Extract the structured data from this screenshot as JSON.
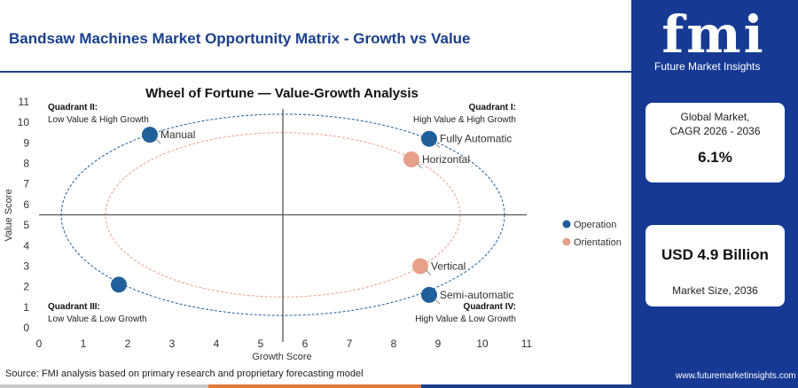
{
  "header": {
    "title": "Bandsaw Machines Market Opportunity Matrix - Growth vs Value"
  },
  "brand": {
    "logo_text": "fmi",
    "tagline": "Future Market Insights",
    "url": "www.futuremarketinsights.com"
  },
  "stats": {
    "cagr_label_line1": "Global Market,",
    "cagr_label_line2": "CAGR 2026 - 2036",
    "cagr_value": "6.1%",
    "size_value": "USD 4.9 Billion",
    "size_label": "Market Size, 2036"
  },
  "footer": {
    "source": "Source: FMI analysis based on primary research and proprietary forecasting model"
  },
  "colors": {
    "brand_navy": "#163a94",
    "operation": "#1f5f9a",
    "orientation": "#e8a08a",
    "footer_gray": "#c8c8c8",
    "footer_orange": "#e07a3a"
  },
  "chart_data": {
    "type": "scatter",
    "title": "Wheel of Fortune — Value-Growth Analysis",
    "xlabel": "Growth Score",
    "ylabel": "Value Score",
    "xlim": [
      0,
      11
    ],
    "ylim": [
      0,
      11
    ],
    "xticks": [
      0,
      1,
      2,
      3,
      4,
      5,
      6,
      7,
      8,
      9,
      10,
      11
    ],
    "yticks": [
      0,
      1,
      2,
      3,
      4,
      5,
      6,
      7,
      8,
      9,
      10,
      11
    ],
    "divider_x": 5.5,
    "divider_y": 5.5,
    "grid": false,
    "legend_position": "right",
    "quadrants": [
      {
        "title": "Quadrant II:",
        "subtitle": "Low Value & High Growth",
        "corner": "top-left"
      },
      {
        "title": "Quadrant I:",
        "subtitle": "High Value & High Growth",
        "corner": "top-right"
      },
      {
        "title": "Quadrant III:",
        "subtitle": "Low Value & Low Growth",
        "corner": "bottom-left"
      },
      {
        "title": "Quadrant IV:",
        "subtitle": "High Value & Low Growth",
        "corner": "bottom-right"
      }
    ],
    "rings": [
      {
        "series": "Operation",
        "center": [
          5.5,
          5.5
        ],
        "rx": 5.0,
        "ry": 4.9
      },
      {
        "series": "Orientation",
        "center": [
          5.5,
          5.5
        ],
        "rx": 4.0,
        "ry": 4.0
      }
    ],
    "series": [
      {
        "name": "Operation",
        "color": "#1f5f9a",
        "points": [
          {
            "label": "Manual",
            "x": 2.5,
            "y": 9.4
          },
          {
            "label": "Fully Automatic",
            "x": 8.8,
            "y": 9.2
          },
          {
            "label": "Semi-automatic",
            "x": 8.8,
            "y": 1.6
          },
          {
            "label": "",
            "x": 1.8,
            "y": 2.1
          }
        ]
      },
      {
        "name": "Orientation",
        "color": "#e8a08a",
        "points": [
          {
            "label": "Horizontal",
            "x": 8.4,
            "y": 8.2
          },
          {
            "label": "Vertical",
            "x": 8.6,
            "y": 3.0
          }
        ]
      }
    ]
  }
}
